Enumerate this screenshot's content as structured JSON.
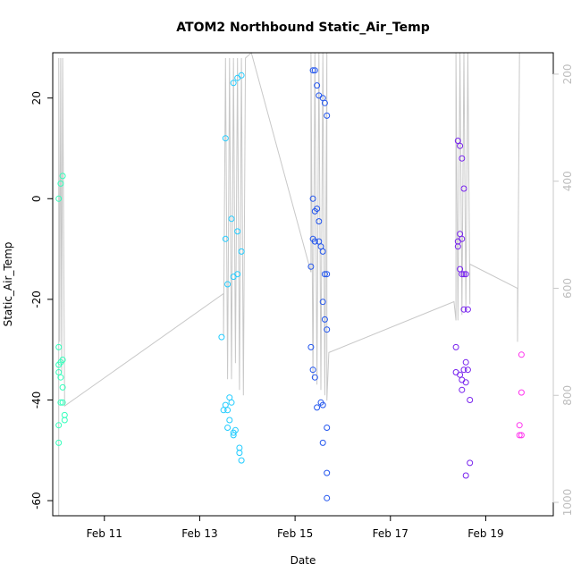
{
  "chart_data": {
    "type": "scatter",
    "title": "ATOM2 Northbound Static_Air_Temp",
    "xlabel": "Date",
    "ylabel": "Static_Air_Temp",
    "xlim": [
      "2008-02-09T22:00",
      "2008-02-20T10:00"
    ],
    "ylim": [
      -63,
      29
    ],
    "x_ticks": [
      {
        "date": "2008-02-11T00:00",
        "label": "Feb 11"
      },
      {
        "date": "2008-02-13T00:00",
        "label": "Feb 13"
      },
      {
        "date": "2008-02-15T00:00",
        "label": "Feb 15"
      },
      {
        "date": "2008-02-17T00:00",
        "label": "Feb 17"
      },
      {
        "date": "2008-02-19T00:00",
        "label": "Feb 19"
      }
    ],
    "y_ticks": [
      20,
      0,
      -20,
      -40,
      -60
    ],
    "y2_ticks": [
      200,
      400,
      600,
      800,
      1000
    ],
    "y2lim": [
      1025,
      160
    ],
    "grid": false,
    "legend": "none",
    "series": [
      {
        "color": "#33ffbb",
        "points": [
          [
            "2008-02-10T01:00",
            0
          ],
          [
            "2008-02-10T02:00",
            3
          ],
          [
            "2008-02-10T03:00",
            4.5
          ],
          [
            "2008-02-10T01:00",
            -29.5
          ],
          [
            "2008-02-10T02:00",
            -32.5
          ],
          [
            "2008-02-10T03:00",
            -32
          ],
          [
            "2008-02-10T01:00",
            -33
          ],
          [
            "2008-02-10T02:00",
            -35.5
          ],
          [
            "2008-02-10T01:00",
            -34.5
          ],
          [
            "2008-02-10T03:00",
            -37.5
          ],
          [
            "2008-02-10T02:00",
            -40.5
          ],
          [
            "2008-02-10T03:00",
            -40.5
          ],
          [
            "2008-02-10T04:00",
            -43
          ],
          [
            "2008-02-10T04:00",
            -44
          ],
          [
            "2008-02-10T01:00",
            -45
          ],
          [
            "2008-02-10T01:00",
            -48.5
          ]
        ]
      },
      {
        "color": "#22ccff",
        "points": [
          [
            "2008-02-13T13:00",
            12
          ],
          [
            "2008-02-13T17:00",
            23
          ],
          [
            "2008-02-13T19:00",
            24
          ],
          [
            "2008-02-13T21:00",
            24.5
          ],
          [
            "2008-02-13T16:00",
            -4
          ],
          [
            "2008-02-13T13:00",
            -8
          ],
          [
            "2008-02-13T19:00",
            -6.5
          ],
          [
            "2008-02-13T21:00",
            -10.5
          ],
          [
            "2008-02-13T17:00",
            -15.5
          ],
          [
            "2008-02-13T19:00",
            -15
          ],
          [
            "2008-02-13T14:00",
            -17
          ],
          [
            "2008-02-13T11:00",
            -27.5
          ],
          [
            "2008-02-13T15:00",
            -39.5
          ],
          [
            "2008-02-13T16:00",
            -40.5
          ],
          [
            "2008-02-13T13:00",
            -41
          ],
          [
            "2008-02-13T14:00",
            -42
          ],
          [
            "2008-02-13T12:00",
            -42
          ],
          [
            "2008-02-13T15:00",
            -44
          ],
          [
            "2008-02-13T14:00",
            -45.5
          ],
          [
            "2008-02-13T17:00",
            -46.5
          ],
          [
            "2008-02-13T18:00",
            -46
          ],
          [
            "2008-02-13T17:00",
            -47
          ],
          [
            "2008-02-13T20:00",
            -49.5
          ],
          [
            "2008-02-13T20:00",
            -50.5
          ],
          [
            "2008-02-13T21:00",
            -52
          ]
        ]
      },
      {
        "color": "#2255ee",
        "points": [
          [
            "2008-02-15T09:00",
            25.5
          ],
          [
            "2008-02-15T10:00",
            25.5
          ],
          [
            "2008-02-15T11:00",
            22.5
          ],
          [
            "2008-02-15T12:00",
            20.5
          ],
          [
            "2008-02-15T14:00",
            20
          ],
          [
            "2008-02-15T15:00",
            19
          ],
          [
            "2008-02-15T16:00",
            16.5
          ],
          [
            "2008-02-15T09:00",
            0
          ],
          [
            "2008-02-15T11:00",
            -2
          ],
          [
            "2008-02-15T10:00",
            -2.5
          ],
          [
            "2008-02-15T12:00",
            -4.5
          ],
          [
            "2008-02-15T09:00",
            -8
          ],
          [
            "2008-02-15T10:00",
            -8.5
          ],
          [
            "2008-02-15T12:00",
            -8.5
          ],
          [
            "2008-02-15T13:00",
            -9.5
          ],
          [
            "2008-02-15T14:00",
            -10.5
          ],
          [
            "2008-02-15T15:00",
            -15
          ],
          [
            "2008-02-15T16:00",
            -15
          ],
          [
            "2008-02-15T08:00",
            -13.5
          ],
          [
            "2008-02-15T14:00",
            -20.5
          ],
          [
            "2008-02-15T15:00",
            -24
          ],
          [
            "2008-02-15T16:00",
            -26
          ],
          [
            "2008-02-15T08:00",
            -29.5
          ],
          [
            "2008-02-15T09:00",
            -34
          ],
          [
            "2008-02-15T10:00",
            -35.5
          ],
          [
            "2008-02-15T13:00",
            -40.5
          ],
          [
            "2008-02-15T14:00",
            -41
          ],
          [
            "2008-02-15T11:00",
            -41.5
          ],
          [
            "2008-02-15T16:00",
            -45.5
          ],
          [
            "2008-02-15T14:00",
            -48.5
          ],
          [
            "2008-02-15T16:00",
            -54.5
          ],
          [
            "2008-02-15T16:00",
            -59.5
          ]
        ]
      },
      {
        "color": "#7722ee",
        "points": [
          [
            "2008-02-18T10:00",
            11.5
          ],
          [
            "2008-02-18T11:00",
            10.5
          ],
          [
            "2008-02-18T12:00",
            8
          ],
          [
            "2008-02-18T13:00",
            2
          ],
          [
            "2008-02-18T11:00",
            -7
          ],
          [
            "2008-02-18T10:00",
            -8.5
          ],
          [
            "2008-02-18T12:00",
            -8
          ],
          [
            "2008-02-18T10:00",
            -9.5
          ],
          [
            "2008-02-18T11:00",
            -14
          ],
          [
            "2008-02-18T12:00",
            -15
          ],
          [
            "2008-02-18T13:00",
            -15
          ],
          [
            "2008-02-18T14:00",
            -15
          ],
          [
            "2008-02-18T13:00",
            -22
          ],
          [
            "2008-02-18T15:00",
            -22
          ],
          [
            "2008-02-18T09:00",
            -29.5
          ],
          [
            "2008-02-18T14:00",
            -32.5
          ],
          [
            "2008-02-18T09:00",
            -34.5
          ],
          [
            "2008-02-18T13:00",
            -34
          ],
          [
            "2008-02-18T15:00",
            -34
          ],
          [
            "2008-02-18T11:00",
            -35
          ],
          [
            "2008-02-18T12:00",
            -36
          ],
          [
            "2008-02-18T14:00",
            -36.5
          ],
          [
            "2008-02-18T12:00",
            -38
          ],
          [
            "2008-02-18T16:00",
            -40
          ],
          [
            "2008-02-18T16:00",
            -52.5
          ],
          [
            "2008-02-18T14:00",
            -55
          ]
        ]
      },
      {
        "color": "#ff33ee",
        "points": [
          [
            "2008-02-19T18:00",
            -31
          ],
          [
            "2008-02-19T18:00",
            -38.5
          ],
          [
            "2008-02-19T17:00",
            -45
          ],
          [
            "2008-02-19T17:00",
            -47
          ],
          [
            "2008-02-19T18:00",
            -47
          ]
        ]
      }
    ],
    "gray_line": {
      "color": "#c8c8c8",
      "points": [
        [
          "2008-02-10T01:00",
          1025
        ],
        [
          "2008-02-10T01:00",
          170
        ],
        [
          "2008-02-10T01:30",
          700
        ],
        [
          "2008-02-10T02:00",
          170
        ],
        [
          "2008-02-10T02:30",
          760
        ],
        [
          "2008-02-10T03:00",
          170
        ],
        [
          "2008-02-10T04:00",
          820
        ],
        [
          "2008-02-13T12:00",
          610
        ],
        [
          "2008-02-13T12:00",
          690
        ],
        [
          "2008-02-13T13:00",
          170
        ],
        [
          "2008-02-13T14:00",
          770
        ],
        [
          "2008-02-13T15:00",
          170
        ],
        [
          "2008-02-13T16:00",
          770
        ],
        [
          "2008-02-13T17:00",
          170
        ],
        [
          "2008-02-13T18:00",
          740
        ],
        [
          "2008-02-13T19:00",
          170
        ],
        [
          "2008-02-13T20:00",
          790
        ],
        [
          "2008-02-13T21:00",
          170
        ],
        [
          "2008-02-13T22:00",
          800
        ],
        [
          "2008-02-13T23:00",
          170
        ],
        [
          "2008-02-14T02:00",
          150
        ],
        [
          "2008-02-15T08:00",
          570
        ],
        [
          "2008-02-15T08:00",
          160
        ],
        [
          "2008-02-15T09:00",
          770
        ],
        [
          "2008-02-15T10:00",
          160
        ],
        [
          "2008-02-15T11:00",
          780
        ],
        [
          "2008-02-15T12:00",
          160
        ],
        [
          "2008-02-15T13:00",
          790
        ],
        [
          "2008-02-15T14:00",
          160
        ],
        [
          "2008-02-15T15:00",
          800
        ],
        [
          "2008-02-15T16:00",
          160
        ],
        [
          "2008-02-15T16:00",
          810
        ],
        [
          "2008-02-15T17:00",
          720
        ],
        [
          "2008-02-18T08:00",
          625
        ],
        [
          "2008-02-18T09:00",
          660
        ],
        [
          "2008-02-18T09:00",
          160
        ],
        [
          "2008-02-18T10:00",
          660
        ],
        [
          "2008-02-18T11:00",
          160
        ],
        [
          "2008-02-18T12:00",
          650
        ],
        [
          "2008-02-18T13:00",
          160
        ],
        [
          "2008-02-18T14:00",
          640
        ],
        [
          "2008-02-18T15:00",
          160
        ],
        [
          "2008-02-18T16:00",
          630
        ],
        [
          "2008-02-18T16:00",
          555
        ],
        [
          "2008-02-19T16:00",
          600
        ],
        [
          "2008-02-19T16:00",
          700
        ],
        [
          "2008-02-19T17:00",
          160
        ]
      ]
    }
  }
}
